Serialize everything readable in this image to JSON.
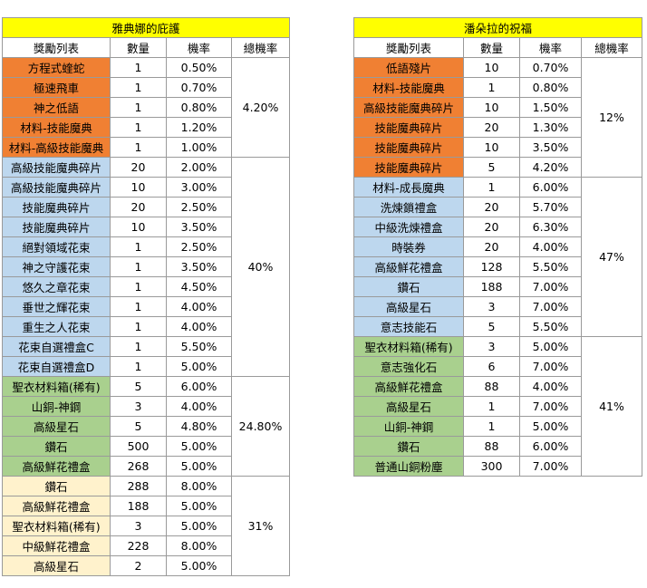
{
  "left": {
    "title": "雅典娜的庇護",
    "headers": [
      "獎勵列表",
      "數量",
      "機率",
      "總機率"
    ],
    "groups": [
      {
        "color": "o",
        "total": "4.20%",
        "rows": [
          [
            "方程式蝰蛇",
            "1",
            "0.50%"
          ],
          [
            "極速飛車",
            "1",
            "0.70%"
          ],
          [
            "神之低語",
            "1",
            "0.80%"
          ],
          [
            "材料-技能魔典",
            "1",
            "1.20%"
          ],
          [
            "材料-高級技能魔典",
            "1",
            "1.00%"
          ]
        ]
      },
      {
        "color": "b",
        "total": "40%",
        "rows": [
          [
            "高級技能魔典碎片",
            "20",
            "2.00%"
          ],
          [
            "高級技能魔典碎片",
            "10",
            "3.00%"
          ],
          [
            "技能魔典碎片",
            "20",
            "2.50%"
          ],
          [
            "技能魔典碎片",
            "10",
            "3.50%"
          ],
          [
            "絕對領域花束",
            "1",
            "2.50%"
          ],
          [
            "神之守護花束",
            "1",
            "3.50%"
          ],
          [
            "悠久之章花束",
            "1",
            "4.50%"
          ],
          [
            "垂世之輝花束",
            "1",
            "4.00%"
          ],
          [
            "重生之人花束",
            "1",
            "4.00%"
          ],
          [
            "花束自選禮盒C",
            "1",
            "5.50%"
          ],
          [
            "花束自選禮盒D",
            "1",
            "5.00%"
          ]
        ]
      },
      {
        "color": "g",
        "total": "24.80%",
        "rows": [
          [
            "聖衣材料箱(稀有)",
            "5",
            "6.00%"
          ],
          [
            "山銅-神鋼",
            "3",
            "4.00%"
          ],
          [
            "高級星石",
            "5",
            "4.80%"
          ],
          [
            "鑽石",
            "500",
            "5.00%"
          ],
          [
            "高級鮮花禮盒",
            "268",
            "5.00%"
          ]
        ]
      },
      {
        "color": "y",
        "total": "31%",
        "rows": [
          [
            "鑽石",
            "288",
            "8.00%"
          ],
          [
            "高級鮮花禮盒",
            "188",
            "5.00%"
          ],
          [
            "聖衣材料箱(稀有)",
            "3",
            "5.00%"
          ],
          [
            "中級鮮花禮盒",
            "228",
            "8.00%"
          ],
          [
            "高級星石",
            "2",
            "5.00%"
          ]
        ]
      }
    ]
  },
  "right": {
    "title": "潘朵拉的祝福",
    "headers": [
      "獎勵列表",
      "數量",
      "機率",
      "總機率"
    ],
    "groups": [
      {
        "color": "o",
        "total": "12%",
        "rows": [
          [
            "低語殘片",
            "10",
            "0.70%"
          ],
          [
            "材料-技能魔典",
            "1",
            "0.80%"
          ],
          [
            "高級技能魔典碎片",
            "10",
            "1.50%"
          ],
          [
            "技能魔典碎片",
            "20",
            "1.30%"
          ],
          [
            "技能魔典碎片",
            "10",
            "3.50%"
          ],
          [
            "技能魔典碎片",
            "5",
            "4.20%"
          ]
        ]
      },
      {
        "color": "b",
        "total": "47%",
        "rows": [
          [
            "材料-成長魔典",
            "1",
            "6.00%"
          ],
          [
            "洗煉鎖禮盒",
            "20",
            "5.70%"
          ],
          [
            "中級洗煉禮盒",
            "20",
            "6.30%"
          ],
          [
            "時裝券",
            "20",
            "4.00%"
          ],
          [
            "高級鮮花禮盒",
            "128",
            "5.50%"
          ],
          [
            "鑽石",
            "188",
            "7.00%"
          ],
          [
            "高級星石",
            "3",
            "7.00%"
          ],
          [
            "意志技能石",
            "5",
            "5.50%"
          ]
        ]
      },
      {
        "color": "g",
        "total": "41%",
        "rows": [
          [
            "聖衣材料箱(稀有)",
            "3",
            "5.00%"
          ],
          [
            "意志強化石",
            "6",
            "7.00%"
          ],
          [
            "高級鮮花禮盒",
            "88",
            "4.00%"
          ],
          [
            "高級星石",
            "1",
            "7.00%"
          ],
          [
            "山銅-神鋼",
            "1",
            "5.00%"
          ],
          [
            "鑽石",
            "88",
            "6.00%"
          ],
          [
            "普通山銅粉塵",
            "300",
            "7.00%"
          ]
        ]
      }
    ]
  }
}
